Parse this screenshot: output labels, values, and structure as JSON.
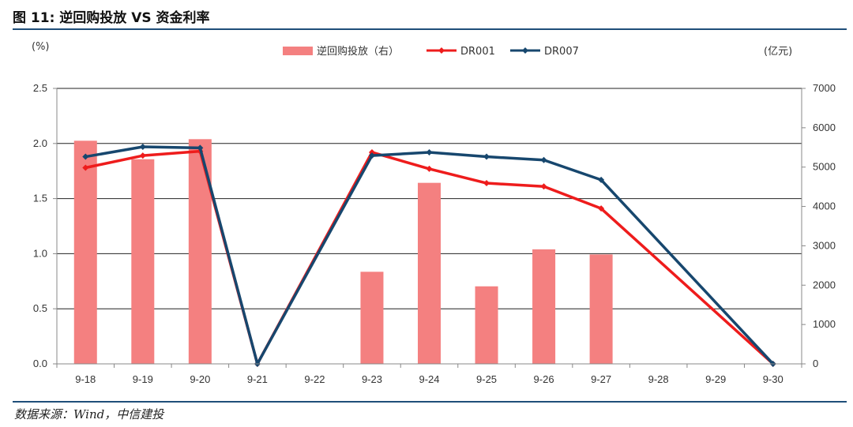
{
  "header": {
    "title": "图 11: 逆回购投放 VS 资金利率"
  },
  "footer": {
    "source": "数据来源：Wind，中信建投"
  },
  "chart_data": {
    "type": "bar",
    "title": "逆回购投放 VS 资金利率",
    "left_unit": "(%)",
    "right_unit": "(亿元)",
    "categories": [
      "9-18",
      "9-19",
      "9-20",
      "9-21",
      "9-22",
      "9-23",
      "9-24",
      "9-25",
      "9-26",
      "9-27",
      "9-28",
      "9-29",
      "9-30"
    ],
    "y_left": {
      "min": 0,
      "max": 2.5,
      "ticks": [
        "0.0",
        "0.5",
        "1.0",
        "1.5",
        "2.0",
        "2.5"
      ]
    },
    "y_right": {
      "min": 0,
      "max": 7000,
      "ticks": [
        "0",
        "1000",
        "2000",
        "3000",
        "4000",
        "5000",
        "6000",
        "7000"
      ]
    },
    "grid": true,
    "legend_position": "top",
    "series": [
      {
        "name": "逆回购投放（右）",
        "kind": "bar",
        "axis": "right",
        "color": "#f48080",
        "values": [
          5670,
          5200,
          5710,
          null,
          null,
          2340,
          4600,
          1970,
          2910,
          2780,
          null,
          null,
          null
        ]
      },
      {
        "name": "DR001",
        "kind": "line",
        "axis": "left",
        "color": "#ee1c1c",
        "values": [
          1.78,
          1.89,
          1.93,
          0,
          null,
          1.92,
          1.77,
          1.64,
          1.61,
          1.41,
          null,
          null,
          0
        ]
      },
      {
        "name": "DR007",
        "kind": "line",
        "axis": "left",
        "color": "#17476e",
        "values": [
          1.88,
          1.97,
          1.96,
          0,
          null,
          1.89,
          1.92,
          1.88,
          1.85,
          1.67,
          null,
          null,
          0
        ]
      }
    ]
  }
}
